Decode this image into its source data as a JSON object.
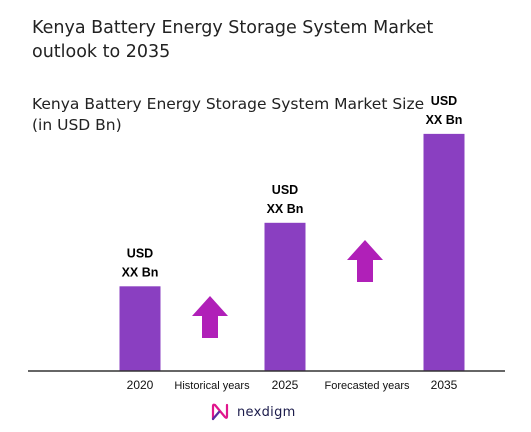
{
  "title": "Kenya Battery Energy Storage System Market outlook to 2035",
  "subtitle": "Kenya Battery Energy Storage System Market Size (in USD Bn)",
  "colors": {
    "bar": "#8a3fc1",
    "arrow": "#b020b8",
    "axis": "#333333"
  },
  "chart_data": {
    "type": "bar",
    "categories": [
      "2020",
      "2025",
      "2035"
    ],
    "values": [
      1.0,
      1.75,
      2.8
    ],
    "value_labels": [
      [
        "USD",
        "XX Bn"
      ],
      [
        "USD",
        "XX Bn"
      ],
      [
        "USD",
        "XX Bn"
      ]
    ],
    "period_labels": [
      "Historical years",
      "Forecasted years"
    ],
    "ylim": [
      0,
      3.2
    ],
    "grid": false,
    "legend": "none"
  },
  "brand": {
    "name": "nexdigm",
    "icon": "nexdigm-logo-icon"
  }
}
